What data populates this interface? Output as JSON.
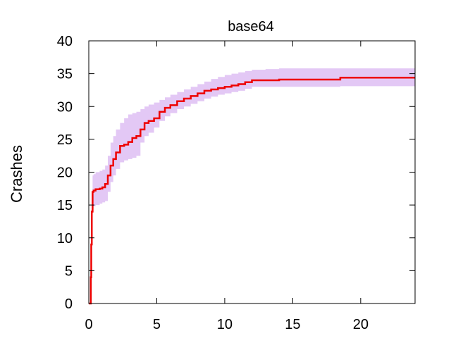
{
  "chart_data": {
    "type": "line",
    "title": "base64",
    "xlabel": "",
    "ylabel": "Crashes",
    "xlim": [
      0,
      24
    ],
    "ylim": [
      0,
      40
    ],
    "x_ticks": [
      "0",
      "5",
      "10",
      "15",
      "20"
    ],
    "y_ticks": [
      "0",
      "5",
      "10",
      "15",
      "20",
      "25",
      "30",
      "35",
      "40"
    ],
    "grid": false,
    "colors": {
      "line": "#ee0000",
      "band": "#e3c8f5"
    },
    "series": [
      {
        "x": [
          0,
          0.12,
          0.15,
          0.18,
          0.22,
          0.28,
          0.35,
          0.5,
          0.8,
          1.0,
          1.2,
          1.4,
          1.6,
          1.8,
          2.0,
          2.3,
          2.6,
          2.9,
          3.2,
          3.5,
          3.8,
          4.1,
          4.4,
          4.8,
          5.2,
          5.6,
          6.0,
          6.5,
          7.0,
          7.5,
          8.0,
          8.5,
          9.0,
          9.5,
          10.0,
          10.5,
          11.0,
          11.5,
          12.0,
          13.0,
          14.0,
          15.0,
          16.0,
          17.0,
          18.0,
          18.5,
          20.0,
          22.0,
          24.0
        ],
        "y": [
          0,
          0,
          4,
          9,
          14,
          17,
          17.2,
          17.4,
          17.5,
          17.7,
          18.2,
          19.5,
          21.0,
          22.0,
          23.0,
          24.0,
          24.2,
          24.6,
          25.2,
          25.5,
          26.5,
          27.5,
          27.8,
          28.2,
          29.2,
          29.8,
          30.2,
          30.8,
          31.2,
          31.6,
          32.0,
          32.4,
          32.6,
          32.8,
          33.0,
          33.2,
          33.4,
          33.7,
          34.0,
          34.0,
          34.1,
          34.1,
          34.1,
          34.1,
          34.1,
          34.4,
          34.4,
          34.4,
          34.4
        ],
        "lower": [
          0,
          0,
          2,
          6,
          11,
          14.5,
          14.8,
          15.0,
          15.2,
          15.4,
          15.6,
          17.0,
          18.5,
          19.5,
          20.5,
          21.5,
          21.8,
          22.0,
          22.2,
          22.5,
          24.5,
          25.5,
          26.0,
          26.8,
          27.8,
          28.5,
          29.0,
          29.6,
          30.0,
          30.4,
          30.8,
          31.2,
          31.5,
          31.8,
          32.0,
          32.2,
          32.4,
          32.7,
          33.0,
          33.0,
          33.0,
          33.0,
          33.0,
          33.0,
          33.0,
          33.1,
          33.1,
          33.1,
          33.1
        ],
        "upper": [
          0,
          0,
          6,
          12,
          17,
          19.5,
          19.7,
          20.0,
          20.2,
          20.4,
          21.0,
          22.5,
          24.5,
          25.5,
          26.5,
          27.5,
          28.2,
          28.8,
          29.0,
          29.2,
          29.6,
          30.0,
          30.3,
          30.6,
          31.0,
          31.4,
          31.8,
          32.2,
          32.6,
          33.0,
          33.4,
          33.8,
          34.2,
          34.5,
          34.8,
          35.0,
          35.2,
          35.4,
          35.6,
          35.7,
          35.8,
          35.8,
          35.8,
          35.8,
          35.8,
          35.8,
          35.8,
          35.8,
          35.8
        ]
      }
    ]
  }
}
